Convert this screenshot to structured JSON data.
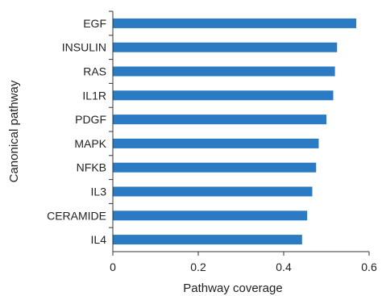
{
  "chart_data": {
    "type": "bar",
    "orientation": "horizontal",
    "categories": [
      "EGF",
      "INSULIN",
      "RAS",
      "IL1R",
      "PDGF",
      "MAPK",
      "NFKB",
      "IL3",
      "CERAMIDE",
      "IL4"
    ],
    "values": [
      0.57,
      0.525,
      0.52,
      0.516,
      0.5,
      0.482,
      0.476,
      0.467,
      0.455,
      0.443
    ],
    "xlabel": "Pathway coverage",
    "ylabel": "Canonical pathway",
    "xlim": [
      0,
      0.6
    ],
    "xticks": [
      "0",
      "0.2",
      "0.4",
      "0.6"
    ],
    "grid": false,
    "bar_color": "#2a7bc4"
  }
}
